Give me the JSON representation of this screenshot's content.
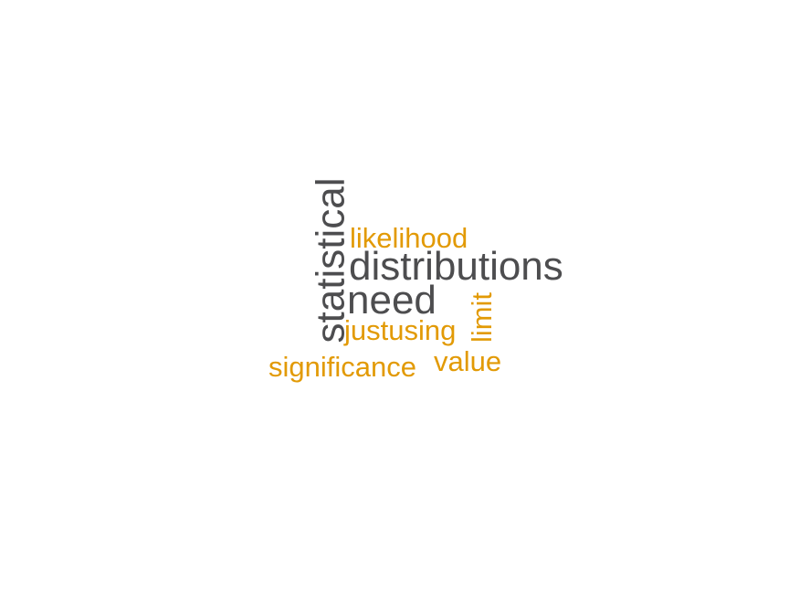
{
  "colors": {
    "dark": "#4d4d4f",
    "accent": "#e29a05"
  },
  "words": [
    {
      "id": "statistical",
      "text": "statistical",
      "tone": "dark",
      "rotated": true
    },
    {
      "id": "likelihood",
      "text": "likelihood",
      "tone": "accent",
      "rotated": false
    },
    {
      "id": "distributions",
      "text": "distributions",
      "tone": "dark",
      "rotated": false
    },
    {
      "id": "need",
      "text": "need",
      "tone": "dark",
      "rotated": false
    },
    {
      "id": "limit",
      "text": "limit",
      "tone": "accent",
      "rotated": true
    },
    {
      "id": "justusing",
      "text": "justusing",
      "tone": "accent",
      "rotated": false
    },
    {
      "id": "value",
      "text": "value",
      "tone": "accent",
      "rotated": false
    },
    {
      "id": "significance",
      "text": "significance",
      "tone": "accent",
      "rotated": false
    }
  ]
}
